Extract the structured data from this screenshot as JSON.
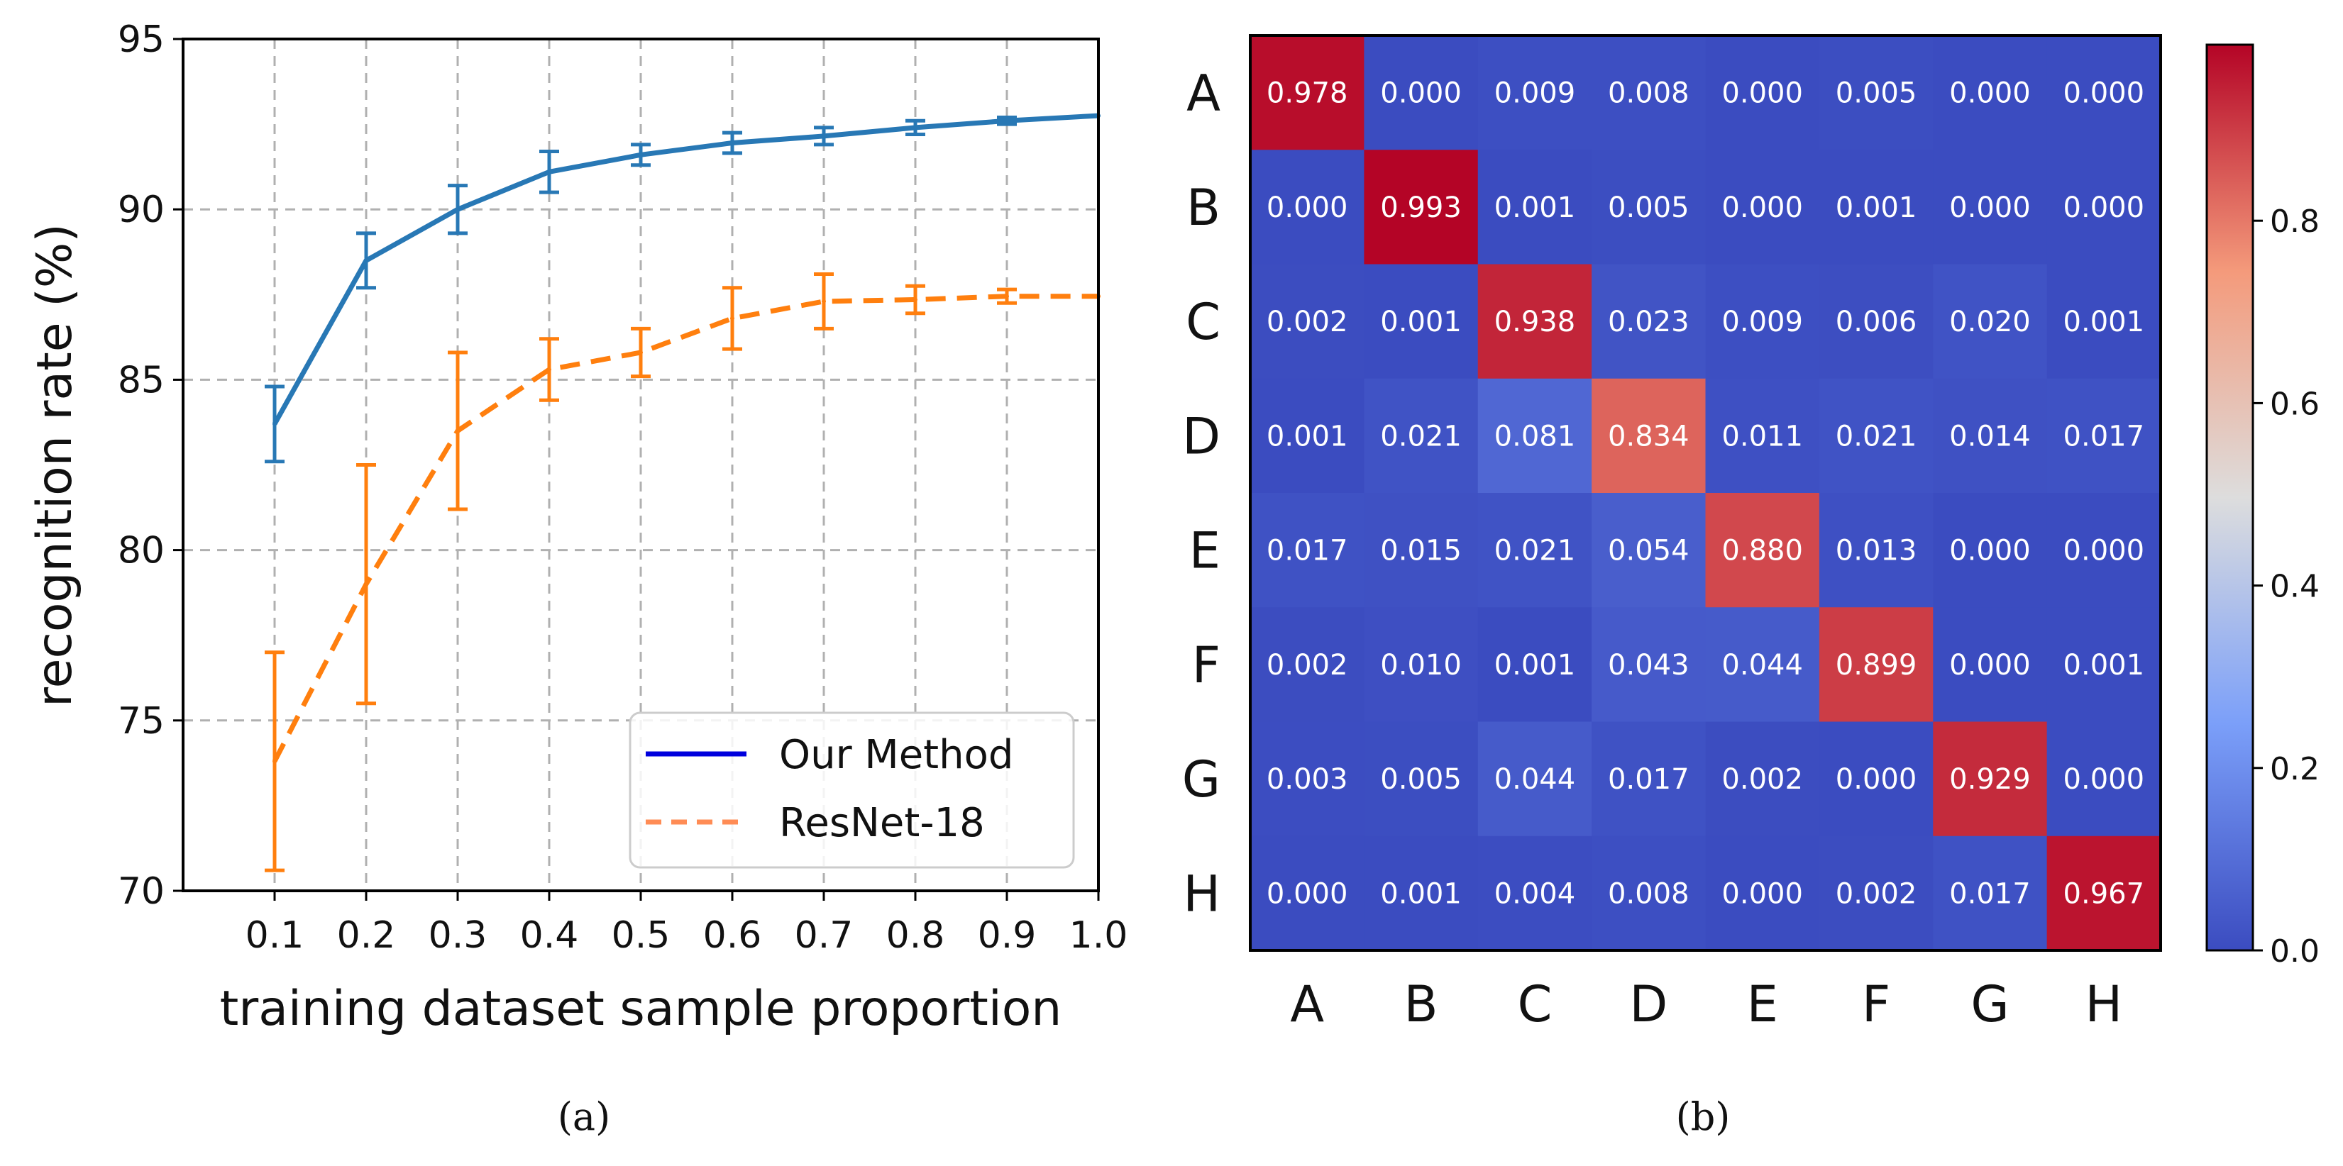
{
  "chart_data": [
    {
      "type": "line",
      "caption": "(a)",
      "xlabel": "training dataset sample proportion",
      "ylabel": "recognition rate (%)",
      "xlim": [
        0.0,
        1.0
      ],
      "ylim": [
        70,
        95
      ],
      "xticks": [
        "0.1",
        "0.2",
        "0.3",
        "0.4",
        "0.5",
        "0.6",
        "0.7",
        "0.8",
        "0.9",
        "1.0"
      ],
      "yticks": [
        "70",
        "75",
        "80",
        "85",
        "90",
        "95"
      ],
      "grid": true,
      "legend_position": "bottom-right",
      "x": [
        0.1,
        0.2,
        0.3,
        0.4,
        0.5,
        0.6,
        0.7,
        0.8,
        0.9,
        1.0
      ],
      "series": [
        {
          "name": "Our Method",
          "legend_color": "#0000dd",
          "color": "#2878b5",
          "style": "solid",
          "values": [
            83.7,
            88.5,
            90.0,
            91.1,
            91.6,
            91.95,
            92.15,
            92.4,
            92.6,
            92.75
          ],
          "errors": [
            1.1,
            0.8,
            0.7,
            0.6,
            0.3,
            0.3,
            0.25,
            0.2,
            0.1,
            0.0
          ]
        },
        {
          "name": "ResNet-18",
          "legend_color": "#ff8c55",
          "color": "#ff7f0e",
          "style": "dashed",
          "values": [
            73.8,
            79.0,
            83.5,
            85.3,
            85.8,
            86.8,
            87.3,
            87.35,
            87.45,
            87.45
          ],
          "errors": [
            3.2,
            3.5,
            2.3,
            0.9,
            0.7,
            0.9,
            0.8,
            0.4,
            0.2,
            0.0
          ]
        }
      ]
    },
    {
      "type": "heatmap",
      "caption": "(b)",
      "row_labels": [
        "A",
        "B",
        "C",
        "D",
        "E",
        "F",
        "G",
        "H"
      ],
      "col_labels": [
        "A",
        "B",
        "C",
        "D",
        "E",
        "F",
        "G",
        "H"
      ],
      "values": [
        [
          0.978,
          0.0,
          0.009,
          0.008,
          0.0,
          0.005,
          0.0,
          0.0
        ],
        [
          0.0,
          0.993,
          0.001,
          0.005,
          0.0,
          0.001,
          0.0,
          0.0
        ],
        [
          0.002,
          0.001,
          0.938,
          0.023,
          0.009,
          0.006,
          0.02,
          0.001
        ],
        [
          0.001,
          0.021,
          0.081,
          0.834,
          0.011,
          0.021,
          0.014,
          0.017
        ],
        [
          0.017,
          0.015,
          0.021,
          0.054,
          0.88,
          0.013,
          0.0,
          0.0
        ],
        [
          0.002,
          0.01,
          0.001,
          0.043,
          0.044,
          0.899,
          0.0,
          0.001
        ],
        [
          0.003,
          0.005,
          0.044,
          0.017,
          0.002,
          0.0,
          0.929,
          0.0
        ],
        [
          0.0,
          0.001,
          0.004,
          0.008,
          0.0,
          0.002,
          0.017,
          0.967
        ]
      ],
      "colormap": "coolwarm",
      "colorbar_range": [
        0.0,
        0.993
      ],
      "colorbar_ticks": [
        0.0,
        0.2,
        0.4,
        0.6,
        0.8
      ],
      "colorbar_tick_labels": [
        "0.0",
        "0.2",
        "0.4",
        "0.6",
        "0.8"
      ]
    }
  ]
}
